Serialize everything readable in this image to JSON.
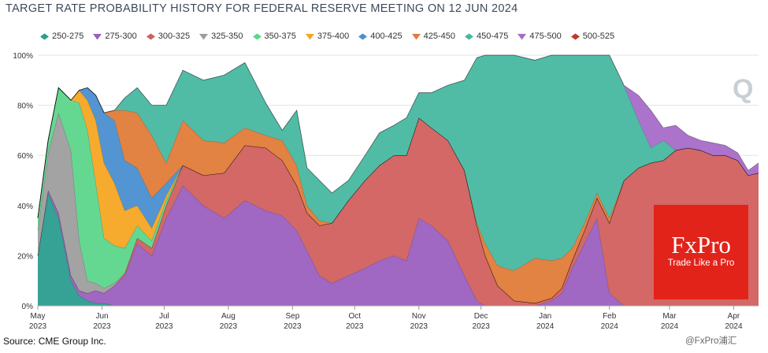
{
  "title": "TARGET RATE PROBABILITY HISTORY FOR FEDERAL RESERVE MEETING ON 12 JUN 2024",
  "source": "Source: CME Group Inc.",
  "brand": {
    "name": "FxPro",
    "tagline": "Trade Like a Pro",
    "watermark": "@FxPro浦汇",
    "color": "#e2231a"
  },
  "chart_data": {
    "type": "area",
    "stacked": true,
    "title": "TARGET RATE PROBABILITY HISTORY FOR FEDERAL RESERVE MEETING ON 12 JUN 2024",
    "ylim": [
      0,
      100
    ],
    "y_ticks": [
      "0%",
      "20%",
      "40%",
      "60%",
      "80%",
      "100%"
    ],
    "x_ticks": [
      {
        "label": "May",
        "year": "2023",
        "x": 0
      },
      {
        "label": "Jun",
        "year": "2023",
        "x": 31
      },
      {
        "label": "Jul",
        "year": "2023",
        "x": 61
      },
      {
        "label": "Aug",
        "year": "2023",
        "x": 92
      },
      {
        "label": "Sep",
        "year": "2023",
        "x": 123
      },
      {
        "label": "Oct",
        "year": "2023",
        "x": 153
      },
      {
        "label": "Nov",
        "year": "2023",
        "x": 184
      },
      {
        "label": "Dec",
        "year": "2023",
        "x": 214
      },
      {
        "label": "Jan",
        "year": "2024",
        "x": 245
      },
      {
        "label": "Feb",
        "year": "2024",
        "x": 276
      },
      {
        "label": "Mar",
        "year": "2024",
        "x": 305
      },
      {
        "label": "Apr",
        "year": "2024",
        "x": 336
      }
    ],
    "x": [
      0,
      5,
      10,
      16,
      20,
      24,
      28,
      32,
      37,
      42,
      48,
      55,
      62,
      70,
      80,
      90,
      100,
      110,
      118,
      125,
      130,
      136,
      142,
      150,
      158,
      165,
      172,
      178,
      184,
      190,
      198,
      206,
      212,
      216,
      222,
      230,
      240,
      248,
      253,
      258,
      264,
      270,
      276,
      283,
      290,
      296,
      302,
      308,
      314,
      320,
      326,
      332,
      338,
      343,
      348
    ],
    "series": [
      {
        "name": "250-275",
        "color": "#2a9d8f",
        "values": [
          20,
          45,
          35,
          10,
          4,
          2,
          1,
          1,
          0,
          0,
          0,
          0,
          0,
          0,
          0,
          0,
          0,
          0,
          0,
          0,
          0,
          0,
          0,
          0,
          0,
          0,
          0,
          0,
          0,
          0,
          0,
          0,
          0,
          0,
          0,
          0,
          0,
          0,
          0,
          0,
          0,
          0,
          0,
          0,
          0,
          0,
          0,
          0,
          0,
          0,
          0,
          0,
          0,
          0,
          0
        ]
      },
      {
        "name": "275-300",
        "color": "#9b5fc0",
        "values": [
          0,
          1,
          2,
          2,
          2,
          3,
          5,
          4,
          8,
          12,
          25,
          20,
          35,
          48,
          40,
          35,
          42,
          38,
          36,
          30,
          22,
          12,
          9,
          12,
          15,
          18,
          20,
          18,
          35,
          32,
          26,
          12,
          2,
          0,
          0,
          0,
          0,
          2,
          5,
          15,
          25,
          35,
          5,
          0,
          0,
          0,
          0,
          0,
          0,
          0,
          0,
          0,
          0,
          0,
          0
        ]
      },
      {
        "name": "300-325",
        "color": "#d1605e",
        "values": [
          0,
          0,
          0,
          0,
          0,
          0,
          0,
          0,
          0,
          1,
          2,
          3,
          5,
          8,
          12,
          18,
          22,
          25,
          22,
          18,
          15,
          20,
          24,
          30,
          35,
          38,
          40,
          42,
          40,
          39,
          40,
          42,
          30,
          20,
          8,
          2,
          1,
          1,
          2,
          3,
          5,
          8,
          28,
          50,
          55,
          57,
          58,
          62,
          63,
          62,
          60,
          60,
          58,
          52,
          53
        ]
      },
      {
        "name": "325-350",
        "color": "#9e9e9e",
        "values": [
          10,
          15,
          40,
          50,
          20,
          5,
          3,
          2,
          1,
          0,
          0,
          0,
          0,
          0,
          0,
          0,
          0,
          0,
          0,
          0,
          0,
          0,
          0,
          0,
          0,
          0,
          0,
          0,
          0,
          0,
          0,
          0,
          0,
          0,
          0,
          0,
          0,
          0,
          0,
          0,
          0,
          0,
          0,
          0,
          0,
          0,
          0,
          0,
          0,
          0,
          0,
          0,
          0,
          0,
          0
        ]
      },
      {
        "name": "350-375",
        "color": "#5cd68b",
        "values": [
          5,
          5,
          10,
          20,
          55,
          60,
          40,
          20,
          15,
          10,
          5,
          3,
          2,
          0,
          0,
          0,
          0,
          0,
          0,
          0,
          0,
          0,
          0,
          0,
          0,
          0,
          0,
          0,
          0,
          0,
          0,
          0,
          0,
          0,
          0,
          0,
          0,
          0,
          0,
          0,
          0,
          0,
          0,
          0,
          0,
          0,
          0,
          0,
          0,
          0,
          0,
          0,
          0,
          0,
          0
        ]
      },
      {
        "name": "375-400",
        "color": "#f5a623",
        "values": [
          0,
          0,
          0,
          0,
          5,
          12,
          25,
          30,
          25,
          15,
          8,
          5,
          2,
          0,
          0,
          0,
          0,
          0,
          0,
          0,
          0,
          0,
          0,
          0,
          0,
          0,
          0,
          0,
          0,
          0,
          0,
          0,
          0,
          0,
          0,
          0,
          0,
          0,
          0,
          0,
          0,
          0,
          0,
          0,
          0,
          0,
          0,
          0,
          0,
          0,
          0,
          0,
          0,
          0,
          0
        ]
      },
      {
        "name": "400-425",
        "color": "#4a8fd0",
        "values": [
          0,
          0,
          0,
          0,
          0,
          5,
          10,
          20,
          25,
          20,
          15,
          12,
          5,
          0,
          0,
          0,
          0,
          0,
          0,
          0,
          0,
          0,
          0,
          0,
          0,
          0,
          0,
          0,
          0,
          0,
          0,
          0,
          0,
          0,
          0,
          0,
          0,
          0,
          0,
          0,
          0,
          0,
          0,
          0,
          0,
          0,
          0,
          0,
          0,
          0,
          0,
          0,
          0,
          0,
          0
        ]
      },
      {
        "name": "425-450",
        "color": "#e07b39",
        "values": [
          0,
          0,
          0,
          0,
          0,
          0,
          0,
          0,
          4,
          20,
          22,
          25,
          8,
          18,
          14,
          12,
          7,
          5,
          8,
          8,
          3,
          2,
          0,
          0,
          0,
          0,
          0,
          0,
          0,
          0,
          0,
          0,
          1,
          5,
          8,
          12,
          18,
          15,
          12,
          5,
          3,
          2,
          2,
          0,
          0,
          0,
          0,
          0,
          0,
          0,
          0,
          0,
          0,
          0,
          0
        ]
      },
      {
        "name": "450-475",
        "color": "#48b8a0",
        "values": [
          0,
          0,
          0,
          0,
          0,
          0,
          0,
          0,
          0,
          5,
          10,
          12,
          23,
          20,
          24,
          27,
          26,
          13,
          4,
          22,
          15,
          16,
          12,
          8,
          10,
          13,
          12,
          15,
          10,
          14,
          22,
          36,
          66,
          75,
          84,
          86,
          79,
          82,
          81,
          77,
          67,
          55,
          65,
          38,
          19,
          6,
          8,
          0,
          0,
          0,
          0,
          0,
          0,
          0,
          0
        ]
      },
      {
        "name": "475-500",
        "color": "#a66cc8",
        "values": [
          0,
          0,
          0,
          0,
          0,
          0,
          0,
          0,
          0,
          0,
          0,
          0,
          0,
          0,
          0,
          0,
          0,
          0,
          0,
          0,
          0,
          0,
          0,
          0,
          0,
          0,
          0,
          0,
          0,
          0,
          0,
          0,
          0,
          0,
          0,
          0,
          0,
          0,
          0,
          0,
          0,
          0,
          0,
          0,
          10,
          15,
          5,
          10,
          5,
          4,
          5,
          4,
          3,
          2,
          4
        ]
      },
      {
        "name": "500-525",
        "color": "#c0392b",
        "values": [
          0,
          0,
          0,
          0,
          0,
          0,
          0,
          0,
          0,
          0,
          0,
          0,
          0,
          0,
          0,
          0,
          0,
          0,
          0,
          0,
          0,
          0,
          0,
          0,
          0,
          0,
          0,
          0,
          0,
          0,
          0,
          0,
          0,
          0,
          0,
          0,
          0,
          0,
          0,
          0,
          0,
          0,
          0,
          0,
          0,
          0,
          0,
          0,
          0,
          0,
          0,
          0,
          0,
          0,
          0
        ]
      }
    ],
    "legend_position": "top",
    "grid": true
  }
}
